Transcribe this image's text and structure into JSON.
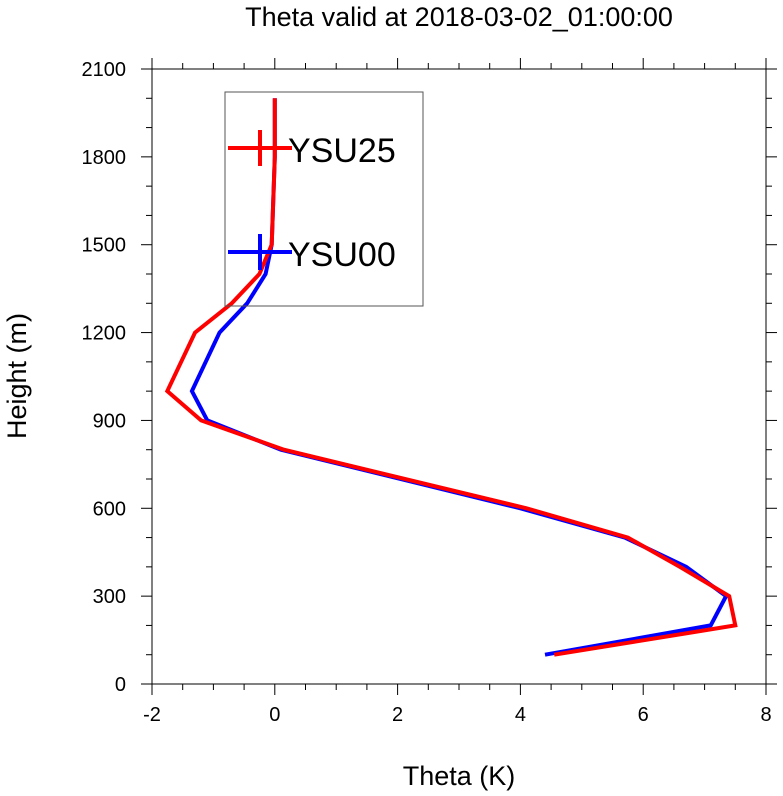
{
  "chart_data": {
    "type": "line",
    "title": "Theta valid at 2018-03-02_01:00:00",
    "xlabel": "Theta (K)",
    "ylabel": "Height (m)",
    "xlim": [
      -2,
      8
    ],
    "ylim": [
      0,
      2100
    ],
    "x_ticks": [
      -2,
      0,
      2,
      4,
      6,
      8
    ],
    "y_ticks": [
      0,
      300,
      600,
      900,
      1200,
      1500,
      1800,
      2100
    ],
    "x_tick_labels": [
      "-2",
      "0",
      "2",
      "4",
      "6",
      "8"
    ],
    "y_tick_labels": [
      "0",
      "300",
      "600",
      "900",
      "1200",
      "1500",
      "1800",
      "2100"
    ],
    "legend_position": "top-left",
    "series": [
      {
        "name": "YSU25",
        "color": "#ff0000",
        "x": [
          4.55,
          7.5,
          7.4,
          6.6,
          5.75,
          4.1,
          0.15,
          -1.2,
          -1.75,
          -1.3,
          -0.7,
          -0.25,
          -0.05,
          0.0,
          0.0
        ],
        "y": [
          100,
          200,
          300,
          400,
          500,
          600,
          800,
          900,
          1000,
          1200,
          1300,
          1400,
          1500,
          1800,
          2000
        ]
      },
      {
        "name": "YSU00",
        "color": "#0000ff",
        "x": [
          4.4,
          7.1,
          7.35,
          6.7,
          5.7,
          4.0,
          0.1,
          -1.1,
          -1.35,
          -0.9,
          -0.45,
          -0.15,
          -0.05,
          0.0,
          0.0
        ],
        "y": [
          100,
          200,
          300,
          400,
          500,
          600,
          800,
          900,
          1000,
          1200,
          1300,
          1400,
          1500,
          1800,
          2000
        ]
      }
    ]
  }
}
